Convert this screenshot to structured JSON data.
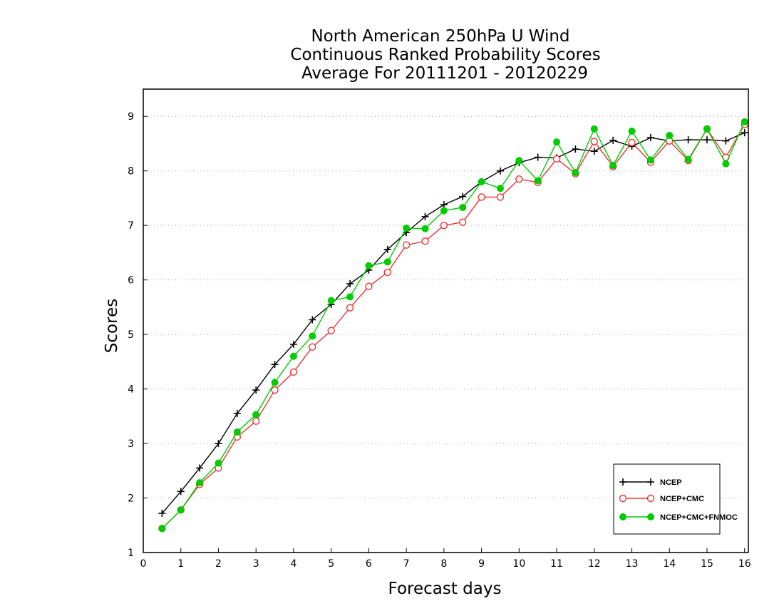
{
  "chart_data": {
    "type": "line",
    "title": [
      "North American 250hPa U Wind",
      "Continuous Ranked Probability Scores",
      "Average For 20111201 - 20120229"
    ],
    "xlabel": "Forecast days",
    "ylabel": "Scores",
    "xlim": [
      0,
      16.1
    ],
    "ylim": [
      1,
      9.5
    ],
    "xticks": [
      "0",
      "1",
      "2",
      "3",
      "4",
      "5",
      "6",
      "7",
      "8",
      "9",
      "10",
      "11",
      "12",
      "13",
      "14",
      "15",
      "16"
    ],
    "yticks": [
      "1",
      "2",
      "3",
      "4",
      "5",
      "6",
      "7",
      "8",
      "9"
    ],
    "grid": "horizontal dotted",
    "legend_position": "bottom-right",
    "x": [
      0.5,
      1,
      1.5,
      2,
      2.5,
      3,
      3.5,
      4,
      4.5,
      5,
      5.5,
      6,
      6.5,
      7,
      7.5,
      8,
      8.5,
      9,
      9.5,
      10,
      10.5,
      11,
      11.5,
      12,
      12.5,
      13,
      13.5,
      14,
      14.5,
      15,
      15.5,
      16
    ],
    "series": [
      {
        "name": "NCEP",
        "color": "#000000",
        "marker": "plus",
        "values": [
          1.72,
          2.12,
          2.55,
          3.0,
          3.55,
          3.98,
          4.45,
          4.82,
          5.27,
          5.55,
          5.93,
          6.18,
          6.56,
          6.87,
          7.16,
          7.38,
          7.53,
          7.8,
          8.0,
          8.15,
          8.25,
          8.24,
          8.4,
          8.36,
          8.56,
          8.45,
          8.61,
          8.55,
          8.57,
          8.57,
          8.55,
          8.7
        ]
      },
      {
        "name": "NCEP+CMC",
        "color": "#ee3333",
        "marker": "open-circle",
        "values": [
          1.44,
          1.78,
          2.25,
          2.55,
          3.12,
          3.41,
          3.98,
          4.31,
          4.77,
          5.07,
          5.49,
          5.88,
          6.14,
          6.64,
          6.71,
          7.0,
          7.06,
          7.52,
          7.52,
          7.85,
          7.79,
          8.22,
          7.95,
          8.54,
          8.08,
          8.52,
          8.16,
          8.55,
          8.19,
          8.77,
          8.25,
          8.85
        ]
      },
      {
        "name": "NCEP+CMC+FNMOC",
        "color": "#00cc00",
        "marker": "filled-circle",
        "values": [
          1.44,
          1.78,
          2.28,
          2.64,
          3.21,
          3.53,
          4.12,
          4.6,
          4.97,
          5.62,
          5.69,
          6.26,
          6.33,
          6.95,
          6.94,
          7.27,
          7.33,
          7.8,
          7.68,
          8.19,
          7.82,
          8.53,
          7.97,
          8.77,
          8.1,
          8.73,
          8.2,
          8.65,
          8.21,
          8.77,
          8.13,
          8.9
        ]
      }
    ]
  }
}
